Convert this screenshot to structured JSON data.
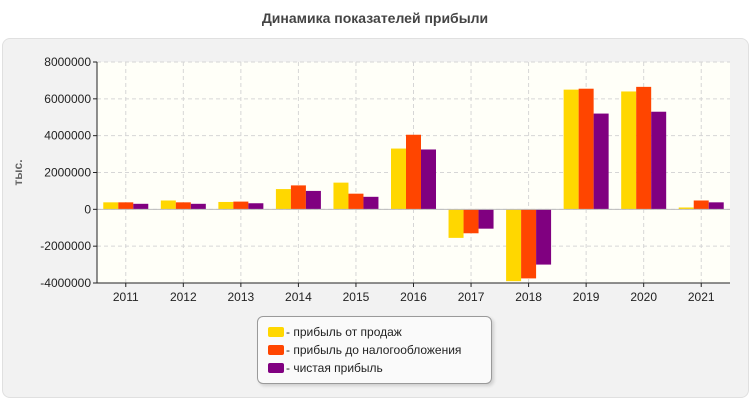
{
  "chart_data": {
    "type": "bar",
    "title": "Динамика показателей прибыли",
    "ylabel": "тыс.",
    "xlabel": "",
    "ylim": [
      -4000000,
      8000000
    ],
    "yticks": [
      8000000,
      6000000,
      4000000,
      2000000,
      0,
      -2000000,
      -4000000
    ],
    "ytick_labels": [
      "8000000",
      "6000000",
      "4000000",
      "2000000",
      "0",
      "-2000000",
      "-4000000"
    ],
    "categories": [
      "2011",
      "2012",
      "2013",
      "2014",
      "2015",
      "2016",
      "2017",
      "2018",
      "2019",
      "2020",
      "2021"
    ],
    "grid": true,
    "legend_position": "bottom-center",
    "series": [
      {
        "name": "- прибыль от продаж",
        "color": "#ffd700",
        "values": [
          380000,
          480000,
          400000,
          1100000,
          1450000,
          3300000,
          -1550000,
          -3900000,
          6500000,
          6400000,
          100000
        ]
      },
      {
        "name": "- прибыль до налогообложения",
        "color": "#ff4500",
        "values": [
          380000,
          380000,
          420000,
          1300000,
          850000,
          4050000,
          -1300000,
          -3750000,
          6550000,
          6650000,
          480000
        ]
      },
      {
        "name": "- чистая прибыль",
        "color": "#800080",
        "values": [
          300000,
          300000,
          330000,
          1000000,
          680000,
          3250000,
          -1050000,
          -3000000,
          5200000,
          5300000,
          380000
        ]
      }
    ]
  }
}
